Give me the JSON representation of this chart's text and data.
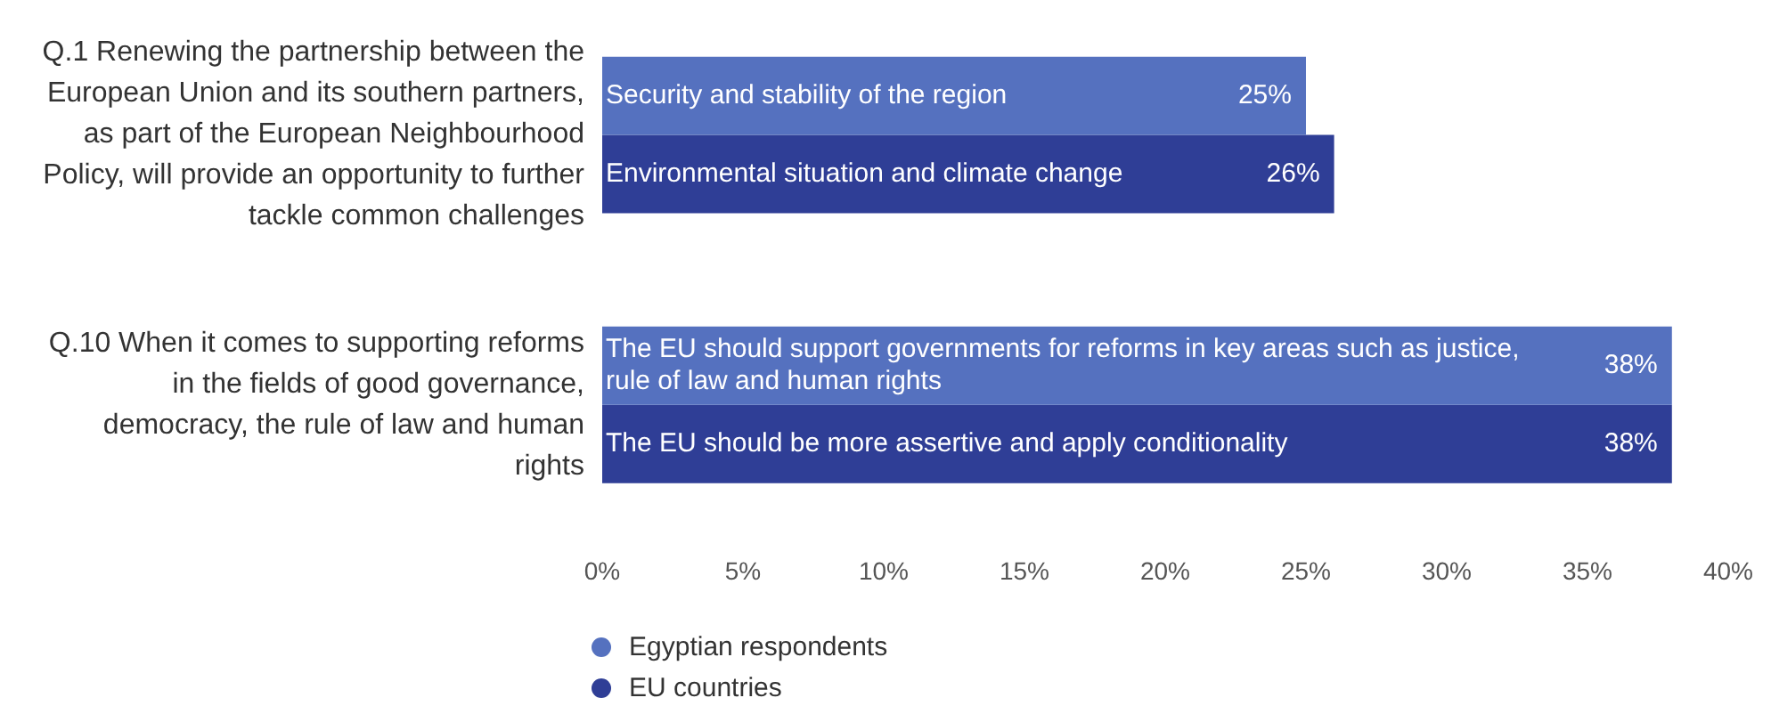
{
  "chart_data": {
    "type": "bar",
    "orientation": "horizontal",
    "categories": [
      "Q.1 Renewing the partnership between the European Union and its southern partners, as part of the European Neighbourhood Policy, will provide an opportunity to further tackle common challenges",
      "Q.10 When it comes to supporting reforms in the fields of good governance, democracy, the rule of law and human rights"
    ],
    "series": [
      {
        "name": "Egyptian respondents",
        "color": "#5571bf",
        "values": [
          25,
          38
        ],
        "value_labels": [
          "25%",
          "38%"
        ]
      },
      {
        "name": "EU countries",
        "color": "#2f3e96",
        "values": [
          26,
          38
        ],
        "value_labels": [
          "26%",
          "38%"
        ]
      }
    ],
    "annotations": [
      {
        "text": "Security and stability of the region",
        "y": "Q.1 Renewing the partnership between the European Union and its southern partners, as part of the European Neighbourhood Policy, will provide an opportunity to further tackle common challenges"
      },
      {
        "text": "Environmental situation and climate change",
        "y": "Q.1 Renewing the partnership between the European Union and its southern partners, as part of the European Neighbourhood Policy, will provide an opportunity to further tackle common challenges"
      },
      {
        "text": "The EU should support governments for reforms in key areas such as justice, rule of law and human rights",
        "y": "Q.10 When it comes to supporting reforms in the fields of good governance, democracy, the rule of law and human rights"
      },
      {
        "text": "The EU should be more assertive and apply conditionality",
        "y": "Q.10 When it comes to supporting reforms in the fields of good governance, democracy, the rule of law and human rights"
      }
    ],
    "xlim": [
      0,
      40
    ],
    "xticks": [
      {
        "value": 0,
        "label": "0%"
      },
      {
        "value": 5,
        "label": "5%"
      },
      {
        "value": 10,
        "label": "10%"
      },
      {
        "value": 15,
        "label": "15%"
      },
      {
        "value": 20,
        "label": "20%"
      },
      {
        "value": 25,
        "label": "25%"
      },
      {
        "value": 30,
        "label": "30%"
      },
      {
        "value": 35,
        "label": "35%"
      },
      {
        "value": 40,
        "label": "40%"
      }
    ],
    "grid": false,
    "legend": "bottom left"
  }
}
